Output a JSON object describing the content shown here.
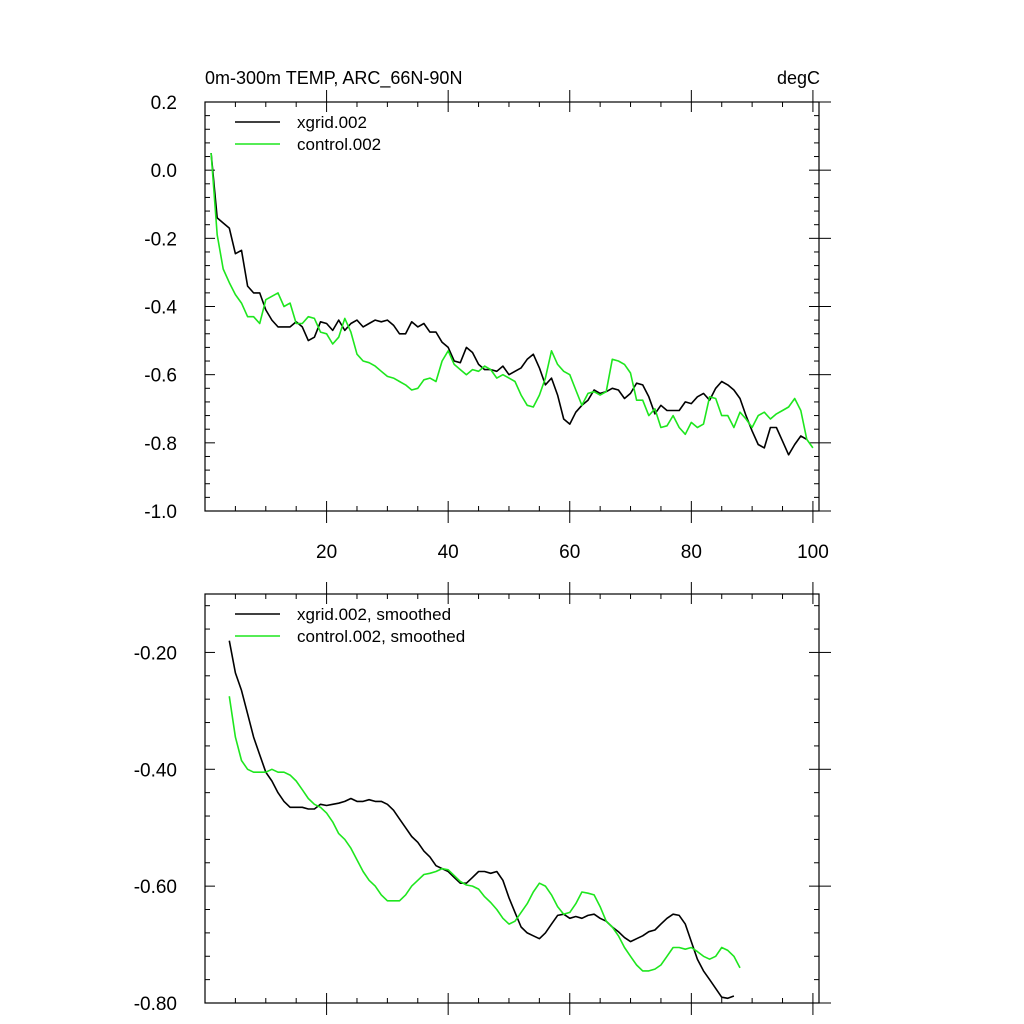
{
  "colors": {
    "xgrid": "#000000",
    "control": "#1ee61e",
    "background": "#ffffff"
  },
  "chart_data": [
    {
      "type": "line",
      "title": "0m-300m TEMP, ARC_66N-90N",
      "units": "degC",
      "xlabel": "",
      "ylabel": "",
      "xlim": [
        0,
        101
      ],
      "ylim": [
        -1.0,
        0.2
      ],
      "xticks": [
        20,
        40,
        60,
        80,
        100
      ],
      "xtick_labels": [
        "20",
        "40",
        "60",
        "80",
        "100"
      ],
      "yticks": [
        -1.0,
        -0.8,
        -0.6,
        -0.4,
        -0.2,
        0.0,
        0.2
      ],
      "ytick_labels": [
        "-1.0",
        "-0.8",
        "-0.6",
        "-0.4",
        "-0.2",
        "0.0",
        "0.2"
      ],
      "legend_position": "top-left",
      "series": [
        {
          "name": "xgrid.002",
          "color_key": "xgrid",
          "x_start": 1,
          "values": [
            0.05,
            -0.14,
            -0.155,
            -0.17,
            -0.245,
            -0.235,
            -0.34,
            -0.36,
            -0.36,
            -0.41,
            -0.44,
            -0.46,
            -0.46,
            -0.46,
            -0.445,
            -0.46,
            -0.5,
            -0.49,
            -0.445,
            -0.45,
            -0.47,
            -0.44,
            -0.47,
            -0.45,
            -0.44,
            -0.46,
            -0.45,
            -0.44,
            -0.445,
            -0.44,
            -0.455,
            -0.48,
            -0.48,
            -0.445,
            -0.46,
            -0.45,
            -0.475,
            -0.475,
            -0.505,
            -0.52,
            -0.56,
            -0.565,
            -0.52,
            -0.535,
            -0.57,
            -0.585,
            -0.585,
            -0.59,
            -0.575,
            -0.6,
            -0.59,
            -0.58,
            -0.555,
            -0.54,
            -0.58,
            -0.63,
            -0.61,
            -0.66,
            -0.73,
            -0.745,
            -0.71,
            -0.69,
            -0.675,
            -0.645,
            -0.655,
            -0.65,
            -0.64,
            -0.645,
            -0.67,
            -0.655,
            -0.625,
            -0.63,
            -0.665,
            -0.715,
            -0.69,
            -0.705,
            -0.705,
            -0.705,
            -0.68,
            -0.685,
            -0.665,
            -0.655,
            -0.675,
            -0.64,
            -0.62,
            -0.63,
            -0.645,
            -0.67,
            -0.72,
            -0.765,
            -0.805,
            -0.815,
            -0.755,
            -0.755,
            -0.795,
            -0.835,
            -0.805,
            -0.78,
            -0.79
          ]
        },
        {
          "name": "control.002",
          "color_key": "control",
          "x_start": 1,
          "values": [
            0.05,
            -0.19,
            -0.29,
            -0.33,
            -0.365,
            -0.39,
            -0.43,
            -0.43,
            -0.45,
            -0.38,
            -0.37,
            -0.36,
            -0.4,
            -0.39,
            -0.45,
            -0.45,
            -0.43,
            -0.435,
            -0.475,
            -0.48,
            -0.51,
            -0.49,
            -0.435,
            -0.475,
            -0.54,
            -0.56,
            -0.565,
            -0.575,
            -0.59,
            -0.605,
            -0.61,
            -0.62,
            -0.63,
            -0.645,
            -0.64,
            -0.615,
            -0.61,
            -0.62,
            -0.56,
            -0.53,
            -0.57,
            -0.585,
            -0.6,
            -0.585,
            -0.59,
            -0.575,
            -0.585,
            -0.61,
            -0.6,
            -0.61,
            -0.62,
            -0.66,
            -0.69,
            -0.695,
            -0.66,
            -0.61,
            -0.53,
            -0.57,
            -0.59,
            -0.6,
            -0.645,
            -0.69,
            -0.655,
            -0.65,
            -0.66,
            -0.65,
            -0.555,
            -0.56,
            -0.57,
            -0.595,
            -0.675,
            -0.675,
            -0.72,
            -0.7,
            -0.755,
            -0.75,
            -0.72,
            -0.755,
            -0.775,
            -0.74,
            -0.755,
            -0.745,
            -0.665,
            -0.67,
            -0.72,
            -0.72,
            -0.755,
            -0.71,
            -0.73,
            -0.755,
            -0.72,
            -0.71,
            -0.73,
            -0.715,
            -0.705,
            -0.695,
            -0.67,
            -0.705,
            -0.79,
            -0.815
          ]
        }
      ]
    },
    {
      "type": "line",
      "title": "",
      "xlabel": "",
      "ylabel": "",
      "xlim": [
        0,
        101
      ],
      "ylim": [
        -0.8,
        -0.1
      ],
      "xticks": [
        20,
        40,
        60,
        80,
        100
      ],
      "xtick_labels": [],
      "yticks": [
        -0.8,
        -0.6,
        -0.4,
        -0.2
      ],
      "ytick_labels": [
        "-0.80",
        "-0.60",
        "-0.40",
        "-0.20"
      ],
      "legend_position": "top-left",
      "series": [
        {
          "name": "xgrid.002, smoothed",
          "color_key": "xgrid",
          "x_start": 4,
          "values": [
            -0.18,
            -0.235,
            -0.265,
            -0.305,
            -0.345,
            -0.375,
            -0.405,
            -0.42,
            -0.44,
            -0.455,
            -0.465,
            -0.465,
            -0.465,
            -0.468,
            -0.468,
            -0.46,
            -0.462,
            -0.46,
            -0.458,
            -0.455,
            -0.45,
            -0.455,
            -0.455,
            -0.452,
            -0.455,
            -0.455,
            -0.46,
            -0.47,
            -0.485,
            -0.5,
            -0.515,
            -0.525,
            -0.54,
            -0.55,
            -0.565,
            -0.57,
            -0.575,
            -0.585,
            -0.595,
            -0.595,
            -0.585,
            -0.575,
            -0.575,
            -0.578,
            -0.575,
            -0.59,
            -0.62,
            -0.645,
            -0.67,
            -0.68,
            -0.685,
            -0.69,
            -0.68,
            -0.665,
            -0.65,
            -0.648,
            -0.655,
            -0.652,
            -0.655,
            -0.65,
            -0.648,
            -0.655,
            -0.66,
            -0.67,
            -0.678,
            -0.688,
            -0.695,
            -0.69,
            -0.685,
            -0.678,
            -0.675,
            -0.665,
            -0.655,
            -0.648,
            -0.65,
            -0.665,
            -0.695,
            -0.725,
            -0.745,
            -0.76,
            -0.775,
            -0.79,
            -0.792,
            -0.788
          ]
        },
        {
          "name": "control.002, smoothed",
          "color_key": "control",
          "x_start": 4,
          "values": [
            -0.275,
            -0.345,
            -0.385,
            -0.4,
            -0.405,
            -0.405,
            -0.405,
            -0.4,
            -0.405,
            -0.405,
            -0.41,
            -0.42,
            -0.435,
            -0.45,
            -0.46,
            -0.465,
            -0.475,
            -0.49,
            -0.51,
            -0.52,
            -0.535,
            -0.555,
            -0.575,
            -0.59,
            -0.6,
            -0.615,
            -0.625,
            -0.625,
            -0.625,
            -0.615,
            -0.6,
            -0.59,
            -0.58,
            -0.578,
            -0.575,
            -0.57,
            -0.572,
            -0.582,
            -0.592,
            -0.598,
            -0.6,
            -0.605,
            -0.618,
            -0.628,
            -0.64,
            -0.655,
            -0.665,
            -0.66,
            -0.645,
            -0.63,
            -0.61,
            -0.595,
            -0.6,
            -0.615,
            -0.635,
            -0.648,
            -0.645,
            -0.63,
            -0.61,
            -0.612,
            -0.615,
            -0.635,
            -0.66,
            -0.67,
            -0.685,
            -0.705,
            -0.72,
            -0.735,
            -0.745,
            -0.745,
            -0.742,
            -0.735,
            -0.72,
            -0.705,
            -0.705,
            -0.708,
            -0.705,
            -0.712,
            -0.72,
            -0.725,
            -0.72,
            -0.705,
            -0.71,
            -0.72,
            -0.74
          ]
        }
      ]
    }
  ]
}
